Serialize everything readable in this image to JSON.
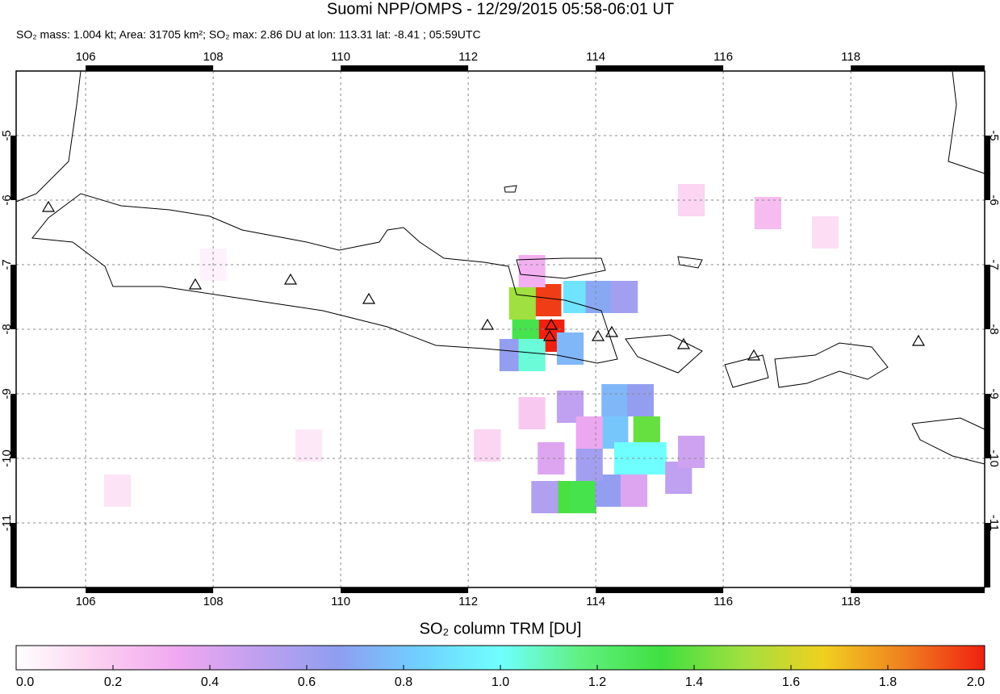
{
  "chart_data": {
    "type": "heatmap",
    "title": "Suomi NPP/OMPS - 12/29/2015 05:58-06:01 UT",
    "subtitle": "SO₂ mass: 1.004 kt; Area: 31705 km²; SO₂ max: 2.86 DU at lon: 113.31 lat: -8.41 ; 05:59UTC",
    "xlim": [
      104.91,
      120.1
    ],
    "ylim": [
      -12,
      -4
    ],
    "xticks": [
      106,
      108,
      110,
      112,
      114,
      116,
      118
    ],
    "yticks": [
      -5,
      -6,
      -7,
      -8,
      -9,
      -10,
      -11
    ],
    "grid": true,
    "cells": {
      "lon": [
        113.25,
        113.3,
        112.85,
        112.9,
        113.7,
        114.05,
        114.45,
        113.0,
        112.7,
        113.0,
        113.6,
        114.3,
        114.7,
        114.3,
        114.8,
        114.5,
        114.9,
        113.5,
        113.8,
        113.2,
        114.2,
        113.9,
        115.3,
        115.5,
        114.6,
        113.3,
        113.6,
        113.9,
        116.7,
        115.5,
        113.0,
        108.0,
        109.5,
        106.5,
        117.6,
        112.3
      ],
      "lat": [
        -7.55,
        -8.1,
        -7.6,
        -8.1,
        -7.5,
        -7.5,
        -7.5,
        -7.1,
        -8.4,
        -8.4,
        -8.3,
        -9.1,
        -9.1,
        -9.6,
        -9.6,
        -10.0,
        -10.0,
        -10.6,
        -10.6,
        -10.6,
        -10.5,
        -10.1,
        -10.3,
        -9.9,
        -10.5,
        -10.0,
        -9.2,
        -9.6,
        -6.2,
        -6.0,
        -9.3,
        -7.0,
        -9.8,
        -10.5,
        -6.5,
        -9.8
      ],
      "values": [
        1.95,
        2.0,
        1.5,
        1.3,
        0.9,
        0.7,
        0.6,
        0.3,
        0.65,
        1.05,
        0.75,
        0.75,
        0.65,
        0.8,
        1.4,
        1.0,
        1.0,
        1.35,
        1.3,
        0.55,
        0.65,
        0.6,
        0.5,
        0.45,
        0.4,
        0.4,
        0.5,
        0.35,
        0.25,
        0.15,
        0.2,
        0.05,
        0.08,
        0.1,
        0.12,
        0.15
      ]
    },
    "colorbar": {
      "label": "SO₂ column TRM [DU]",
      "lim": [
        0,
        2
      ],
      "ticks": [
        {
          "value": 0,
          "label": "0.0"
        },
        0.2,
        0.4,
        0.6,
        0.8,
        {
          "value": 1,
          "label": "1.0"
        },
        1.2,
        1.4,
        1.6,
        1.8,
        {
          "value": 2,
          "label": "2.0"
        }
      ],
      "colormap": [
        "#ffffff",
        "#fbd0f0",
        "#f0a8f0",
        "#c0a0f0",
        "#8f9ef0",
        "#70d0ff",
        "#70ffff",
        "#60f080",
        "#40e040",
        "#a0e040",
        "#f0d020",
        "#f08020",
        "#f02010"
      ]
    }
  }
}
